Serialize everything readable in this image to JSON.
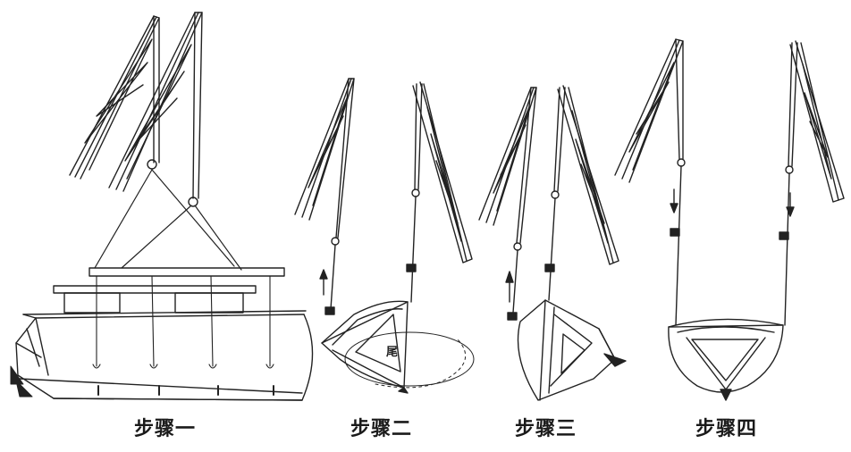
{
  "steps": [
    {
      "caption": "步骤一"
    },
    {
      "caption": "步骤二",
      "part_label": "尾"
    },
    {
      "caption": "步骤三"
    },
    {
      "caption": "步骤四"
    }
  ],
  "colors": {
    "ink": "#222222",
    "paper": "#ffffff"
  }
}
